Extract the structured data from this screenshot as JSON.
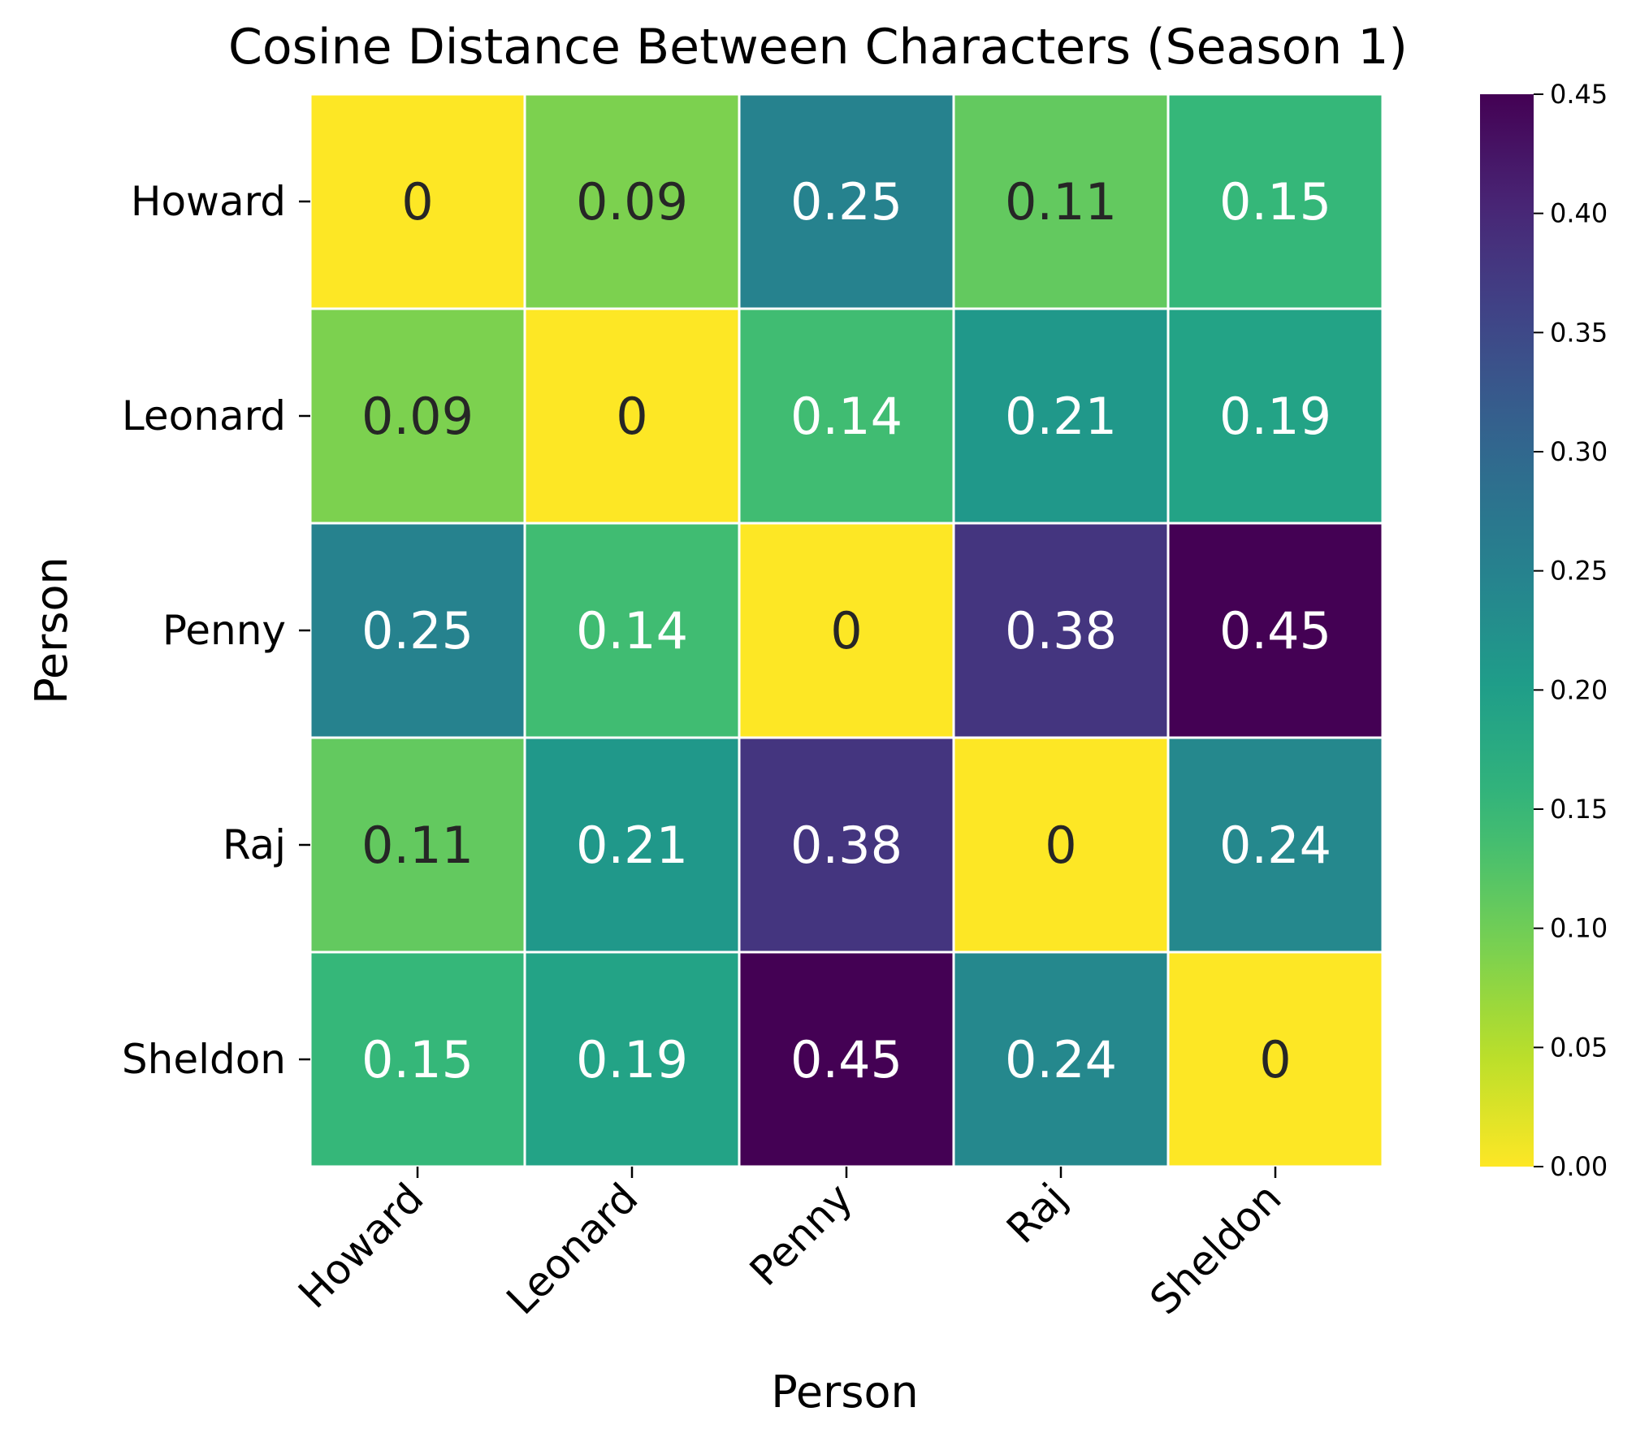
{
  "chart_data": {
    "type": "heatmap",
    "title": "Cosine Distance Between Characters (Season 1)",
    "xlabel": "Person",
    "ylabel": "Person",
    "x_categories": [
      "Howard",
      "Leonard",
      "Penny",
      "Raj",
      "Sheldon"
    ],
    "y_categories": [
      "Howard",
      "Leonard",
      "Penny",
      "Raj",
      "Sheldon"
    ],
    "values": [
      [
        0,
        0.09,
        0.25,
        0.11,
        0.15
      ],
      [
        0.09,
        0,
        0.14,
        0.21,
        0.19
      ],
      [
        0.25,
        0.14,
        0,
        0.38,
        0.45
      ],
      [
        0.11,
        0.21,
        0.38,
        0,
        0.24
      ],
      [
        0.15,
        0.19,
        0.45,
        0.24,
        0
      ]
    ],
    "cell_labels": [
      [
        "0",
        "0.09",
        "0.25",
        "0.11",
        "0.15"
      ],
      [
        "0.09",
        "0",
        "0.14",
        "0.21",
        "0.19"
      ],
      [
        "0.25",
        "0.14",
        "0",
        "0.38",
        "0.45"
      ],
      [
        "0.11",
        "0.21",
        "0.38",
        "0",
        "0.24"
      ],
      [
        "0.15",
        "0.19",
        "0.45",
        "0.24",
        "0"
      ]
    ],
    "colormap": "viridis (reversed)",
    "colorbar": {
      "range": [
        0,
        0.45
      ],
      "ticks": [
        0,
        0.05,
        0.1,
        0.15,
        0.2,
        0.25,
        0.3,
        0.35,
        0.4,
        0.45
      ],
      "tick_labels": [
        "0.00",
        "0.05",
        "0.10",
        "0.15",
        "0.20",
        "0.25",
        "0.30",
        "0.35",
        "0.40",
        "0.45"
      ]
    }
  }
}
